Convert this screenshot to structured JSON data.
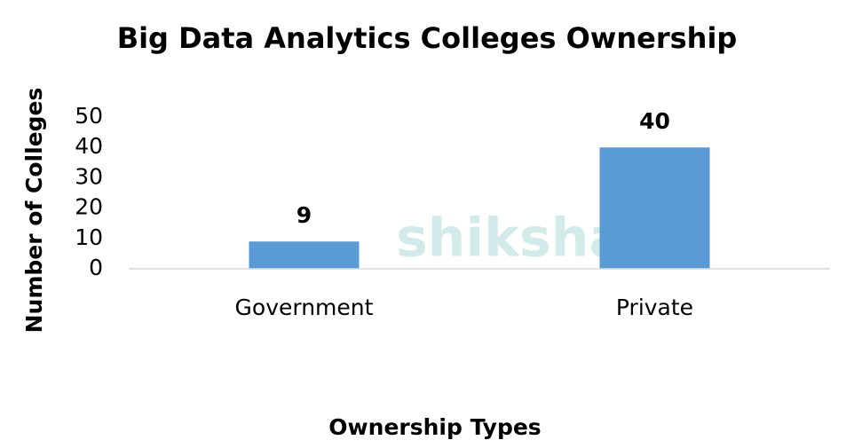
{
  "chart_data": {
    "type": "bar",
    "title": "Big Data Analytics Colleges Ownership",
    "categories": [
      "Government",
      "Private"
    ],
    "values": [
      9,
      40
    ],
    "color": "#5b9bd5",
    "ylim": [
      0,
      50
    ],
    "yticks": [
      0,
      10,
      20,
      30,
      40,
      50
    ],
    "grid": false,
    "x_label": "Ownership Types",
    "y_label": "Number of Colleges",
    "watermark": "shiksha"
  }
}
